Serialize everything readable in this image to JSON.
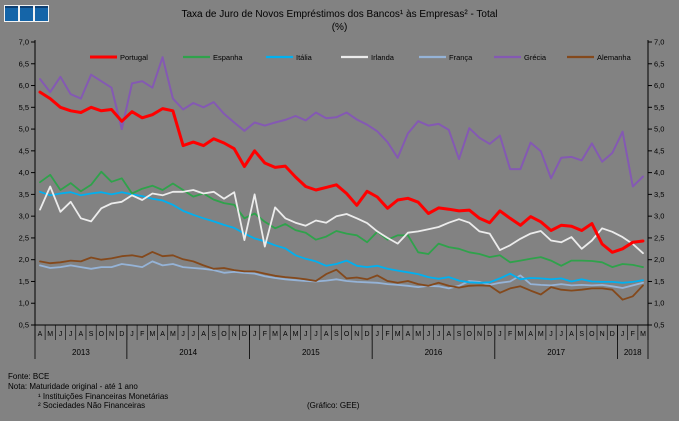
{
  "logo": {
    "square_count": 3,
    "color": "#1565a8"
  },
  "title": {
    "line1": "Taxa de Juro de Novos Empréstimos dos Bancos¹ às Empresas² - Total",
    "line2": "(%)"
  },
  "footer": {
    "fonte": "Fonte: BCE",
    "nota": "Nota: Maturidade original - até 1 ano",
    "nota_sup1": "¹ Instituições Financeiras Monetárias",
    "nota_sup2": "² Sociedades Não Financeiras",
    "credit": "(Gráfico: GEE)"
  },
  "chart_data": {
    "type": "line",
    "title": "Taxa de Juro de Novos Empréstimos dos Bancos às Empresas - Total (%)",
    "xlabel": "",
    "ylabel": "",
    "ylim": [
      0.5,
      7.0
    ],
    "grid": false,
    "legend_position": "top",
    "background": "#828282",
    "axis_color": "#000000",
    "yticks": [
      0.5,
      1.0,
      1.5,
      2.0,
      2.5,
      3.0,
      3.5,
      4.0,
      4.5,
      5.0,
      5.5,
      6.0,
      6.5,
      7.0
    ],
    "ytick_labels": [
      "0,5",
      "1,0",
      "1,5",
      "2,0",
      "2,5",
      "3,0",
      "3,5",
      "4,0",
      "4,5",
      "5,0",
      "5,5",
      "6,0",
      "6,5",
      "7,0"
    ],
    "x_months": [
      "A",
      "M",
      "J",
      "J",
      "A",
      "S",
      "O",
      "N",
      "D",
      "J",
      "F",
      "M",
      "A",
      "M",
      "J",
      "J",
      "A",
      "S",
      "O",
      "N",
      "D",
      "J",
      "F",
      "M",
      "A",
      "M",
      "J",
      "J",
      "A",
      "S",
      "O",
      "N",
      "D",
      "J",
      "F",
      "M",
      "A",
      "M",
      "J",
      "J",
      "A",
      "S",
      "O",
      "N",
      "D",
      "J",
      "F",
      "M",
      "A",
      "M",
      "J",
      "J",
      "A",
      "S",
      "O",
      "N",
      "D",
      "J",
      "F",
      "M"
    ],
    "years": [
      {
        "label": "2013",
        "months": 9
      },
      {
        "label": "2014",
        "months": 12
      },
      {
        "label": "2015",
        "months": 12
      },
      {
        "label": "2016",
        "months": 12
      },
      {
        "label": "2017",
        "months": 12
      },
      {
        "label": "2018",
        "months": 3
      }
    ],
    "series": [
      {
        "name": "Portugal",
        "color": "#ff0000",
        "width": 3,
        "values": [
          5.85,
          5.7,
          5.5,
          5.42,
          5.38,
          5.5,
          5.42,
          5.45,
          5.18,
          5.4,
          5.26,
          5.33,
          5.47,
          5.42,
          4.62,
          4.7,
          4.62,
          4.78,
          4.68,
          4.55,
          4.14,
          4.5,
          4.22,
          4.12,
          4.15,
          3.9,
          3.68,
          3.6,
          3.66,
          3.72,
          3.52,
          3.25,
          3.57,
          3.44,
          3.18,
          3.37,
          3.41,
          3.32,
          3.06,
          3.19,
          3.16,
          3.12,
          3.14,
          2.95,
          2.85,
          3.12,
          2.95,
          2.79,
          2.99,
          2.87,
          2.67,
          2.79,
          2.77,
          2.67,
          2.83,
          2.36,
          2.17,
          2.25,
          2.4,
          2.43
        ]
      },
      {
        "name": "Espanha",
        "color": "#2fa24b",
        "width": 1.8,
        "values": [
          3.78,
          3.95,
          3.6,
          3.76,
          3.57,
          3.72,
          4.02,
          3.79,
          3.87,
          3.52,
          3.63,
          3.7,
          3.6,
          3.75,
          3.6,
          3.45,
          3.52,
          3.38,
          3.3,
          3.26,
          2.95,
          3.06,
          2.87,
          2.72,
          2.82,
          2.68,
          2.62,
          2.46,
          2.53,
          2.66,
          2.6,
          2.56,
          2.4,
          2.64,
          2.46,
          2.56,
          2.56,
          2.17,
          2.13,
          2.37,
          2.29,
          2.25,
          2.17,
          2.13,
          2.06,
          2.1,
          1.94,
          1.98,
          2.02,
          2.06,
          1.98,
          1.86,
          1.98,
          1.98,
          1.97,
          1.94,
          1.83,
          1.9,
          1.88,
          1.83
        ]
      },
      {
        "name": "Itália",
        "color": "#00b0f0",
        "width": 1.8,
        "values": [
          3.56,
          3.48,
          3.52,
          3.55,
          3.48,
          3.52,
          3.55,
          3.5,
          3.55,
          3.5,
          3.46,
          3.4,
          3.36,
          3.26,
          3.12,
          3.03,
          2.95,
          2.88,
          2.8,
          2.73,
          2.6,
          2.49,
          2.42,
          2.33,
          2.26,
          2.1,
          2.02,
          1.96,
          1.86,
          1.9,
          1.98,
          1.86,
          1.83,
          1.86,
          1.79,
          1.75,
          1.71,
          1.67,
          1.6,
          1.56,
          1.6,
          1.52,
          1.48,
          1.47,
          1.48,
          1.57,
          1.68,
          1.55,
          1.58,
          1.57,
          1.55,
          1.57,
          1.5,
          1.55,
          1.5,
          1.49,
          1.49,
          1.47,
          1.49,
          1.53
        ]
      },
      {
        "name": "Irlanda",
        "color": "#ececec",
        "width": 1.8,
        "values": [
          3.15,
          3.68,
          3.1,
          3.33,
          2.95,
          2.88,
          3.18,
          3.29,
          3.33,
          3.48,
          3.37,
          3.52,
          3.48,
          3.56,
          3.56,
          3.6,
          3.52,
          3.56,
          3.4,
          3.55,
          2.45,
          3.5,
          2.3,
          3.2,
          2.95,
          2.85,
          2.78,
          2.9,
          2.85,
          3.0,
          3.05,
          2.95,
          2.84,
          2.65,
          2.5,
          2.37,
          2.62,
          2.65,
          2.7,
          2.75,
          2.85,
          2.93,
          2.85,
          2.65,
          2.6,
          2.22,
          2.33,
          2.48,
          2.6,
          2.66,
          2.44,
          2.4,
          2.52,
          2.25,
          2.44,
          2.72,
          2.64,
          2.52,
          2.36,
          2.15
        ]
      },
      {
        "name": "França",
        "color": "#95b3d7",
        "width": 1.8,
        "values": [
          1.87,
          1.81,
          1.83,
          1.87,
          1.83,
          1.79,
          1.83,
          1.83,
          1.9,
          1.87,
          1.83,
          1.96,
          1.87,
          1.9,
          1.83,
          1.81,
          1.79,
          1.76,
          1.7,
          1.72,
          1.7,
          1.68,
          1.62,
          1.58,
          1.55,
          1.53,
          1.51,
          1.5,
          1.52,
          1.55,
          1.51,
          1.49,
          1.48,
          1.47,
          1.44,
          1.42,
          1.4,
          1.37,
          1.4,
          1.39,
          1.34,
          1.4,
          1.51,
          1.49,
          1.42,
          1.47,
          1.5,
          1.64,
          1.44,
          1.42,
          1.41,
          1.44,
          1.41,
          1.42,
          1.41,
          1.42,
          1.39,
          1.35,
          1.41,
          1.47
        ]
      },
      {
        "name": "Grécia",
        "color": "#8459b3",
        "width": 2,
        "values": [
          6.15,
          5.85,
          6.2,
          5.8,
          5.7,
          6.25,
          6.1,
          5.95,
          5.0,
          6.05,
          6.1,
          5.95,
          6.65,
          5.7,
          5.45,
          5.6,
          5.5,
          5.62,
          5.35,
          5.15,
          4.96,
          5.15,
          5.08,
          5.15,
          5.21,
          5.3,
          5.2,
          5.38,
          5.25,
          5.27,
          5.38,
          5.22,
          5.1,
          4.95,
          4.7,
          4.34,
          4.9,
          5.18,
          5.08,
          5.12,
          4.98,
          4.31,
          5.02,
          4.8,
          4.66,
          4.85,
          4.08,
          4.08,
          4.69,
          4.49,
          3.87,
          4.34,
          4.36,
          4.28,
          4.67,
          4.25,
          4.45,
          4.94,
          3.68,
          3.91
        ]
      },
      {
        "name": "Alemanha",
        "color": "#84491c",
        "width": 1.8,
        "values": [
          1.96,
          1.92,
          1.94,
          1.98,
          1.96,
          2.05,
          2.0,
          2.03,
          2.08,
          2.1,
          2.06,
          2.18,
          2.08,
          2.1,
          2.01,
          1.96,
          1.87,
          1.79,
          1.81,
          1.76,
          1.73,
          1.73,
          1.68,
          1.63,
          1.6,
          1.58,
          1.55,
          1.51,
          1.67,
          1.77,
          1.57,
          1.59,
          1.55,
          1.64,
          1.51,
          1.47,
          1.51,
          1.44,
          1.4,
          1.47,
          1.4,
          1.36,
          1.4,
          1.41,
          1.4,
          1.24,
          1.34,
          1.39,
          1.29,
          1.2,
          1.37,
          1.31,
          1.29,
          1.31,
          1.34,
          1.34,
          1.31,
          1.08,
          1.16,
          1.41
        ]
      }
    ]
  }
}
